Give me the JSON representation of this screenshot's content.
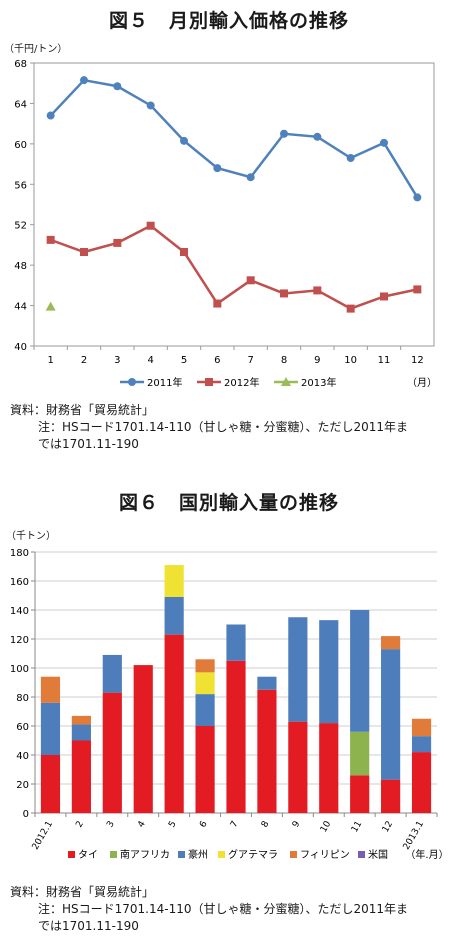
{
  "figure5": {
    "title": "図５　月別輸入価格の推移",
    "unit": "（千円/トン）",
    "month_unit": "（月）",
    "chart_data": {
      "type": "line",
      "x": [
        "1",
        "2",
        "3",
        "4",
        "5",
        "6",
        "7",
        "8",
        "9",
        "10",
        "11",
        "12"
      ],
      "ylim": [
        40,
        68
      ],
      "yticks": [
        40,
        44,
        48,
        52,
        56,
        60,
        64,
        68
      ],
      "grid": false,
      "legend": "bottom",
      "series": [
        {
          "name": "2011年",
          "color": "#4f81bd",
          "marker": "circle",
          "values": [
            62.8,
            66.3,
            65.7,
            63.8,
            60.3,
            57.6,
            56.7,
            61.0,
            60.7,
            58.6,
            60.1,
            54.7
          ]
        },
        {
          "name": "2012年",
          "color": "#c0504d",
          "marker": "square",
          "values": [
            50.5,
            49.3,
            50.2,
            51.9,
            49.3,
            44.2,
            46.5,
            45.2,
            45.5,
            43.7,
            44.9,
            45.6
          ]
        },
        {
          "name": "2013年",
          "color": "#9bbb59",
          "marker": "triangle",
          "values": [
            43.9,
            null,
            null,
            null,
            null,
            null,
            null,
            null,
            null,
            null,
            null,
            null
          ]
        }
      ]
    },
    "source": "資料：財務省「貿易統計」",
    "note_line1": "注：HSコード1701.14-110（甘しゃ糖・分蜜糖）、ただし2011年ま",
    "note_line2": "では1701.11-190"
  },
  "figure6": {
    "title": "図６　国別輸入量の推移",
    "unit": "（千トン）",
    "period_unit": "（年.月）",
    "chart_data": {
      "type": "bar",
      "stacked": true,
      "categories": [
        "2012.1",
        "2",
        "3",
        "4",
        "5",
        "6",
        "7",
        "8",
        "9",
        "10",
        "11",
        "12",
        "2013.1"
      ],
      "ylim": [
        0,
        180
      ],
      "yticks": [
        0,
        20,
        40,
        60,
        80,
        100,
        120,
        140,
        160,
        180
      ],
      "grid": true,
      "legend": "bottom",
      "series": [
        {
          "name": "タイ",
          "color": "#e31b23",
          "values": [
            40,
            50,
            83,
            102,
            123,
            60,
            105,
            85,
            63,
            62,
            26,
            23,
            42
          ]
        },
        {
          "name": "南アフリカ",
          "color": "#8db34f",
          "values": [
            0,
            0,
            0,
            0,
            0,
            0,
            0,
            0,
            0,
            0,
            30,
            0,
            0
          ]
        },
        {
          "name": "豪州",
          "color": "#4d7ebb",
          "values": [
            36,
            11,
            26,
            0,
            26,
            22,
            25,
            9,
            72,
            71,
            84,
            90,
            11
          ]
        },
        {
          "name": "グアテマラ",
          "color": "#f0e232",
          "values": [
            0,
            0,
            0,
            0,
            22,
            15,
            0,
            0,
            0,
            0,
            0,
            0,
            0
          ]
        },
        {
          "name": "フィリピン",
          "color": "#e07b39",
          "values": [
            18,
            6,
            0,
            0,
            0,
            9,
            0,
            0,
            0,
            0,
            0,
            9,
            12
          ]
        },
        {
          "name": "米国",
          "color": "#7a5cb0",
          "values": [
            0,
            0,
            0,
            0,
            0,
            0,
            0,
            0,
            0,
            0,
            0,
            0,
            0
          ]
        }
      ]
    },
    "source": "資料：財務省「貿易統計」",
    "note_line1": "注：HSコード1701.14-110（甘しゃ糖・分蜜糖）、ただし2011年ま",
    "note_line2": "では1701.11-190"
  }
}
